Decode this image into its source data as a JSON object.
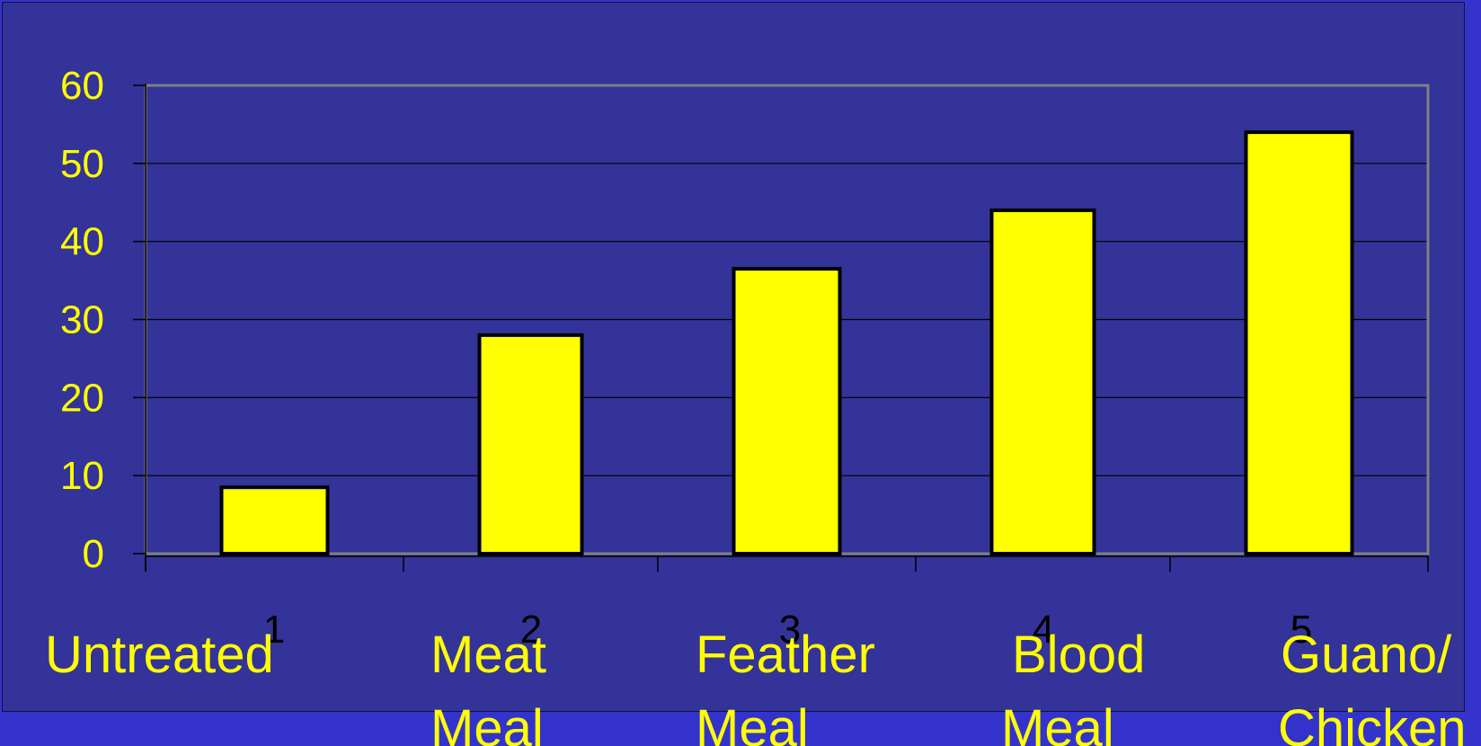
{
  "colors": {
    "background": "#3333cc",
    "panel": "#333399",
    "bar_fill": "#ffff00",
    "bar_stroke": "#000000",
    "text": "#ffff00",
    "gridline": "#000000",
    "plot_border": "#808080"
  },
  "chart_data": {
    "type": "bar",
    "categories": [
      "1",
      "2",
      "3",
      "4",
      "5"
    ],
    "category_names": [
      [
        "Untreated"
      ],
      [
        "Meat",
        "Meal"
      ],
      [
        "Feather",
        "Meal"
      ],
      [
        "Blood",
        "Meal"
      ],
      [
        "Guano/",
        "Chicken"
      ]
    ],
    "values": [
      8.5,
      28,
      36.5,
      44,
      54
    ],
    "yticks": [
      0,
      10,
      20,
      30,
      40,
      50,
      60
    ],
    "ylim": [
      0,
      60
    ],
    "grid": true,
    "legend": "none"
  }
}
